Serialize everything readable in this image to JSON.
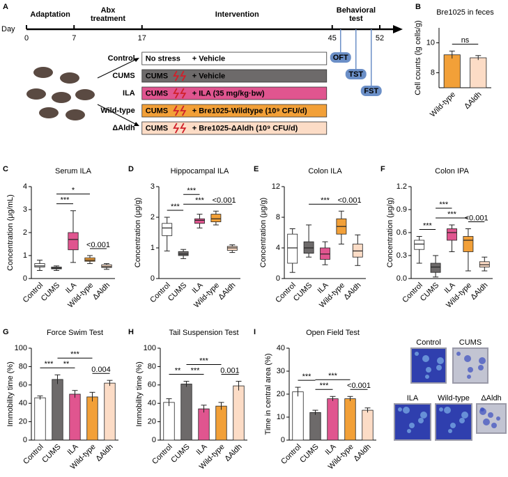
{
  "timeline": {
    "panel": "A",
    "axis_label": "Day",
    "days": [
      0,
      7,
      17,
      45,
      52
    ],
    "phases": [
      "Adaptation",
      "Abx\ntreatment",
      "Intervention",
      "Behavioral\ntest"
    ],
    "groups": [
      {
        "name": "Control",
        "stress": "No stress",
        "stress_color": "#1f9e3c",
        "treatment": "+ Vehicle",
        "color": "#ffffff",
        "text_color": "#000000"
      },
      {
        "name": "CUMS",
        "stress": "CUMS",
        "stress_color": "#e0202a",
        "treatment": "+ Vehicle",
        "color": "#6d6a6a",
        "text_color": "#ffffff"
      },
      {
        "name": "ILA",
        "stress": "CUMS",
        "stress_color": "#e0202a",
        "treatment": "+ ILA (35 mg/kg·bw)",
        "color": "#e0558f",
        "text_color": "#ffffff"
      },
      {
        "name": "Wild-type",
        "stress": "CUMS",
        "stress_color": "#e0202a",
        "treatment": "+ Bre1025-Wildtype (10⁹ CFU/d)",
        "color": "#f2a038",
        "text_color": "#000000"
      },
      {
        "name": "ΔAldh",
        "stress": "CUMS",
        "stress_color": "#e0202a",
        "treatment": "+ Bre1025-ΔAldh (10⁹ CFU/d)",
        "color": "#fcdcc6",
        "text_color": "#000000"
      }
    ],
    "tests": [
      "OFT",
      "TST",
      "FST"
    ]
  },
  "chart_data": [
    {
      "type": "bar",
      "panel": "B",
      "title": "Bre1025 in feces",
      "ylabel": "Cell counts (lg cells/g)",
      "categories": [
        "Wild-type",
        "ΔAldh"
      ],
      "values": [
        9.2,
        9.0
      ],
      "errors": [
        0.25,
        0.15
      ],
      "colors": [
        "#f2a038",
        "#fcdcc6"
      ],
      "ylim": [
        7,
        11
      ],
      "yticks": [
        8,
        10
      ],
      "brackets": [
        {
          "label": "ns",
          "from": 0,
          "to": 1
        }
      ]
    },
    {
      "type": "box",
      "panel": "C",
      "title": "Serum ILA",
      "ylabel": "Concentration (μg/mL)",
      "categories": [
        "Control",
        "CUMS",
        "ILA",
        "Wild-type",
        "ΔAldh"
      ],
      "min": [
        0.35,
        0.35,
        0.7,
        0.65,
        0.4
      ],
      "q1": [
        0.5,
        0.42,
        1.25,
        0.75,
        0.48
      ],
      "median": [
        0.55,
        0.45,
        1.7,
        0.8,
        0.52
      ],
      "q3": [
        0.65,
        0.5,
        2.0,
        0.9,
        0.6
      ],
      "max": [
        0.8,
        0.55,
        2.95,
        1.0,
        0.65
      ],
      "colors": [
        "#ffffff",
        "#6d6a6a",
        "#e0558f",
        "#f2a038",
        "#fcdcc6"
      ],
      "ylim": [
        0,
        4
      ],
      "yticks": [
        0,
        1,
        2,
        3,
        4
      ],
      "brackets": [
        {
          "label": "***",
          "from": 1,
          "to": 2
        },
        {
          "label": "*",
          "from": 1,
          "to": 3
        },
        {
          "label": "<0.001",
          "from": 3,
          "to": 4
        }
      ]
    },
    {
      "type": "box",
      "panel": "D",
      "title": "Hippocampal ILA",
      "ylabel": "Concentration (μg/g)",
      "categories": [
        "Control",
        "CUMS",
        "ILA",
        "Wild-type",
        "ΔAldh"
      ],
      "min": [
        0.9,
        0.65,
        1.65,
        1.75,
        0.85
      ],
      "q1": [
        1.4,
        0.75,
        1.8,
        1.85,
        0.92
      ],
      "median": [
        1.65,
        0.8,
        1.9,
        1.95,
        1.0
      ],
      "q3": [
        1.8,
        0.88,
        1.95,
        2.1,
        1.05
      ],
      "max": [
        2.0,
        0.95,
        2.1,
        2.2,
        1.1
      ],
      "colors": [
        "#ffffff",
        "#6d6a6a",
        "#e0558f",
        "#f2a038",
        "#fcdcc6"
      ],
      "ylim": [
        0,
        3
      ],
      "yticks": [
        0,
        1,
        2,
        3
      ],
      "brackets": [
        {
          "label": "***",
          "from": 0,
          "to": 1
        },
        {
          "label": "***",
          "from": 1,
          "to": 3
        },
        {
          "label": "***",
          "from": 1,
          "to": 2
        },
        {
          "label": "<0.001",
          "from": 3,
          "to": 4
        }
      ]
    },
    {
      "type": "box",
      "panel": "E",
      "title": "Colon ILA",
      "ylabel": "Concentration (μg/g)",
      "categories": [
        "Control",
        "CUMS",
        "ILA",
        "Wild-type",
        "ΔAldh"
      ],
      "min": [
        0.8,
        2.8,
        1.8,
        4.5,
        1.7
      ],
      "q1": [
        2,
        3.3,
        2.5,
        5.8,
        2.8
      ],
      "median": [
        4,
        4,
        3.2,
        6.8,
        3.6
      ],
      "q3": [
        5.8,
        4.8,
        4,
        7.8,
        4.5
      ],
      "max": [
        6.5,
        7,
        4.8,
        8.8,
        5.7
      ],
      "colors": [
        "#ffffff",
        "#6d6a6a",
        "#e0558f",
        "#f2a038",
        "#fcdcc6"
      ],
      "ylim": [
        0,
        12
      ],
      "yticks": [
        0,
        4,
        8,
        12
      ],
      "brackets": [
        {
          "label": "<0.001",
          "from": 3,
          "to": 4
        },
        {
          "label": "***",
          "from": 1,
          "to": 3
        }
      ]
    },
    {
      "type": "box",
      "panel": "F",
      "title": "Colon IPA",
      "ylabel": "Concentration (μg/g)",
      "categories": [
        "Control",
        "CUMS",
        "ILA",
        "Wild-type",
        "ΔAldh"
      ],
      "min": [
        0.2,
        0.02,
        0.35,
        0.1,
        0.1
      ],
      "q1": [
        0.38,
        0.08,
        0.5,
        0.35,
        0.15
      ],
      "median": [
        0.45,
        0.15,
        0.6,
        0.5,
        0.18
      ],
      "q3": [
        0.5,
        0.2,
        0.65,
        0.55,
        0.22
      ],
      "max": [
        0.55,
        0.3,
        0.7,
        0.65,
        0.28
      ],
      "colors": [
        "#ffffff",
        "#6d6a6a",
        "#e0558f",
        "#f2a038",
        "#fcdcc6"
      ],
      "ylim": [
        0,
        1.2
      ],
      "yticks": [
        {
          "value": 0,
          "label": "0.0"
        },
        0.3,
        0.6,
        0.9,
        1.2
      ],
      "brackets": [
        {
          "label": "***",
          "from": 0,
          "to": 1
        },
        {
          "label": "***",
          "from": 1,
          "to": 3
        },
        {
          "label": "***",
          "from": 1,
          "to": 2
        },
        {
          "label": "<0.001",
          "from": 3,
          "to": 4
        }
      ]
    },
    {
      "type": "bar",
      "panel": "G",
      "title": "Force Swim Test",
      "ylabel": "Immobility time (%)",
      "categories": [
        "Control",
        "CUMS",
        "ILA",
        "Wild-type",
        "ΔAldh"
      ],
      "values": [
        46,
        66,
        50,
        47,
        62
      ],
      "errors": [
        2,
        5,
        4,
        5,
        3
      ],
      "colors": [
        "#ffffff",
        "#6d6a6a",
        "#e0558f",
        "#f2a038",
        "#fcdcc6"
      ],
      "ylim": [
        0,
        100
      ],
      "yticks": [
        0,
        20,
        40,
        60,
        80,
        100
      ],
      "brackets": [
        {
          "label": "***",
          "from": 0,
          "to": 1
        },
        {
          "label": "**",
          "from": 1,
          "to": 2
        },
        {
          "label": "0.004",
          "from": 3,
          "to": 4
        },
        {
          "label": "***",
          "from": 1,
          "to": 3
        }
      ]
    },
    {
      "type": "bar",
      "panel": "H",
      "title": "Tail Suspension Test",
      "ylabel": "Immobility time (%)",
      "categories": [
        "Control",
        "CUMS",
        "ILA",
        "Wild-type",
        "ΔAldh"
      ],
      "values": [
        41,
        61,
        34,
        37,
        59
      ],
      "errors": [
        4,
        3,
        4,
        4,
        5
      ],
      "colors": [
        "#ffffff",
        "#6d6a6a",
        "#e0558f",
        "#f2a038",
        "#fcdcc6"
      ],
      "ylim": [
        0,
        100
      ],
      "yticks": [
        0,
        20,
        40,
        60,
        80,
        100
      ],
      "brackets": [
        {
          "label": "**",
          "from": 0,
          "to": 1
        },
        {
          "label": "***",
          "from": 1,
          "to": 2
        },
        {
          "label": "0.001",
          "from": 3,
          "to": 4
        },
        {
          "label": "***",
          "from": 1,
          "to": 3
        }
      ]
    },
    {
      "type": "bar",
      "panel": "I",
      "title": "Open Field Test",
      "ylabel": "Time in central area (%)",
      "categories": [
        "Control",
        "CUMS",
        "ILA",
        "Wild-type",
        "ΔAldh"
      ],
      "values": [
        21,
        12,
        18,
        18,
        13
      ],
      "errors": [
        2,
        1,
        1,
        1,
        1
      ],
      "colors": [
        "#ffffff",
        "#6d6a6a",
        "#e0558f",
        "#f2a038",
        "#fcdcc6"
      ],
      "ylim": [
        0,
        40
      ],
      "yticks": [
        0,
        10,
        20,
        30,
        40
      ],
      "brackets": [
        {
          "label": "<0.001",
          "from": 3,
          "to": 4
        },
        {
          "label": "***",
          "from": 1,
          "to": 2
        },
        {
          "label": "***",
          "from": 0,
          "to": 1
        },
        {
          "label": "***",
          "from": 1,
          "to": 3
        }
      ]
    }
  ],
  "open_field_images": {
    "labels": [
      "Control",
      "CUMS",
      "ILA",
      "Wild-type",
      "ΔAldh"
    ]
  }
}
